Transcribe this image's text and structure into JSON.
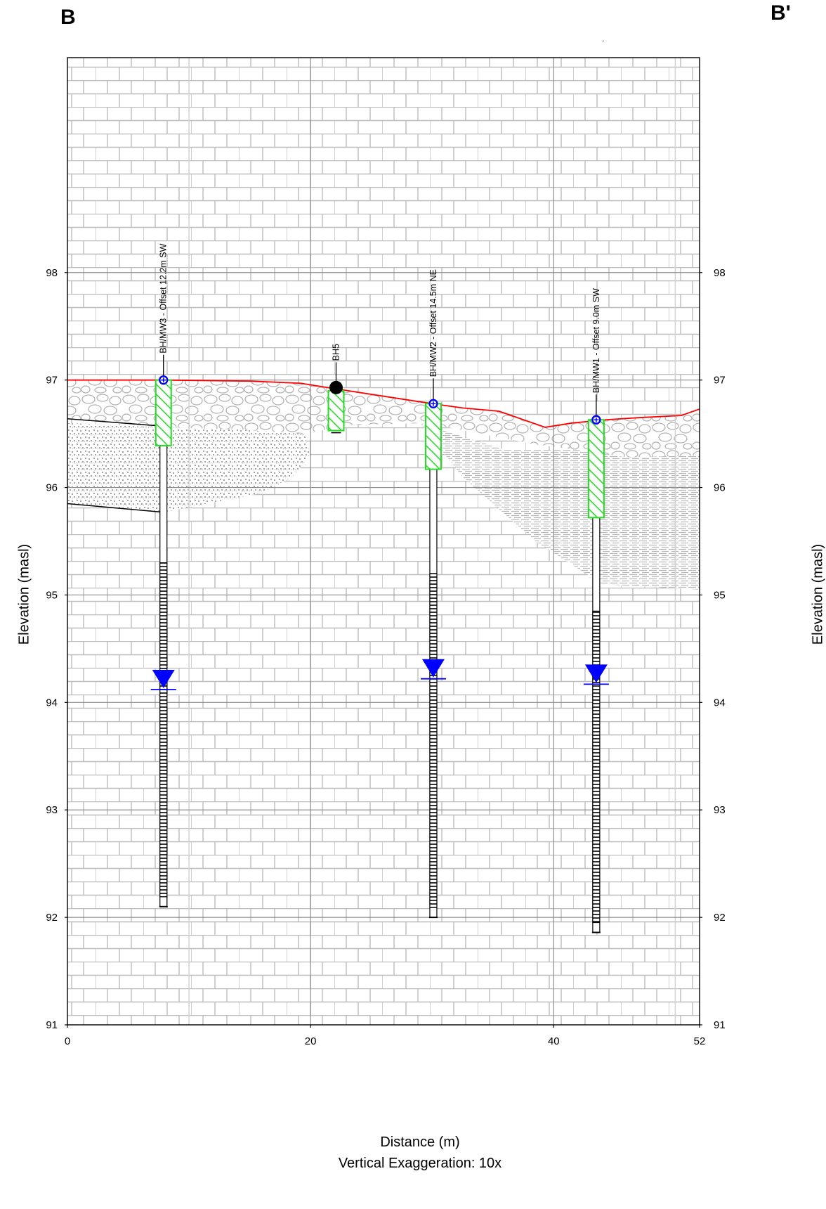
{
  "section": {
    "start_label": "B",
    "end_label": "B'",
    "stray_mark": "."
  },
  "axes": {
    "xlabel": "Distance (m)",
    "xlabel_sub": "Vertical Exaggeration: 10x",
    "ylabel_left": "Elevation (masl)",
    "ylabel_right": "Elevation (masl)",
    "xlim": [
      0,
      52
    ],
    "ylim": [
      91,
      100
    ],
    "x_ticks": [
      0,
      20,
      40,
      52
    ],
    "x_tick_labels": [
      "0",
      "20",
      "40",
      "52"
    ],
    "y_ticks": [
      91,
      92,
      93,
      94,
      95,
      96,
      97,
      98
    ],
    "y_tick_labels": [
      "91",
      "92",
      "93",
      "94",
      "95",
      "96",
      "97",
      "98"
    ],
    "major_grid_x": [
      20,
      40
    ],
    "minor_grid_x": [
      10,
      50
    ],
    "grid": true
  },
  "colors": {
    "ground_surface": "#ff0000",
    "screen": "#22dd22",
    "water_level": "#0000ff",
    "gravel": "#bbbbbb",
    "sand": "#aaaaaa",
    "silt": "#b8b8b8",
    "bedrock": "#bdbdbd"
  },
  "chart_data": {
    "type": "cross-section",
    "ground_surface": {
      "x": [
        0,
        8,
        15,
        19.2,
        21.4,
        30,
        32.5,
        35.5,
        39.3,
        41.5,
        44.3,
        47,
        50.5,
        52
      ],
      "y": [
        97.0,
        97.0,
        96.99,
        96.97,
        96.93,
        96.78,
        96.74,
        96.71,
        96.56,
        96.6,
        96.63,
        96.65,
        96.67,
        96.73
      ]
    },
    "layers": [
      {
        "name": "gravel fill",
        "pattern": "gravel"
      },
      {
        "name": "sand",
        "pattern": "sand"
      },
      {
        "name": "silt",
        "pattern": "silt"
      },
      {
        "name": "limestone bedrock",
        "pattern": "brick"
      }
    ],
    "boreholes": [
      {
        "id": "BH/MW3",
        "label": "BH/MW3  - Offset 12.2m SW",
        "x": 7.9,
        "top": 97.0,
        "screen": [
          96.39,
          97.0
        ],
        "well_open_to": 95.3,
        "bottom": 92.1,
        "water_level": 94.12,
        "symbol": "monitoring-well"
      },
      {
        "id": "BH5",
        "label": "BH5",
        "x": 22.1,
        "top": 96.93,
        "screen": [
          96.53,
          96.9
        ],
        "bottom": 96.51,
        "symbol": "borehole"
      },
      {
        "id": "BH/MW2",
        "label": "BH/MW2  - Offset 14.5m NE",
        "x": 30.1,
        "top": 96.78,
        "screen": [
          96.17,
          96.78
        ],
        "well_open_to": 95.2,
        "bottom": 92.0,
        "water_level": 94.22,
        "symbol": "monitoring-well"
      },
      {
        "id": "BH/MW1",
        "label": "BH/MW1  - Offset 9.0m SW",
        "x": 43.5,
        "top": 96.63,
        "screen": [
          95.72,
          96.63
        ],
        "well_open_to": 94.85,
        "bottom": 91.86,
        "water_level": 94.17,
        "symbol": "monitoring-well"
      }
    ]
  }
}
